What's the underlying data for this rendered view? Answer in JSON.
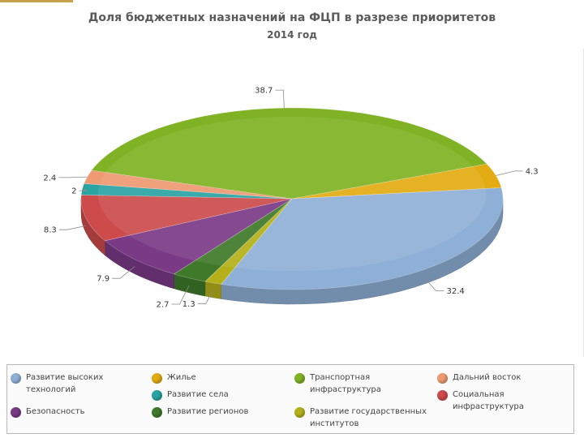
{
  "title": "Доля бюджетных назначений на ФЦП в разрезе приоритетов",
  "subtitle": "2014 год",
  "chart_data": {
    "type": "pie",
    "title": "Доля бюджетных назначений на ФЦП в разрезе приоритетов",
    "subtitle": "2014 год",
    "legend_position": "bottom",
    "slices": [
      {
        "name": "Развитие высоких технологий",
        "value": 32.4,
        "color": "#8fb0d6"
      },
      {
        "name": "Развитие государственных институтов",
        "value": 1.3,
        "color": "#b5b01a"
      },
      {
        "name": "Развитие регионов",
        "value": 2.7,
        "color": "#3f7a2a"
      },
      {
        "name": "Безопасность",
        "value": 7.9,
        "color": "#7a3a86"
      },
      {
        "name": "Социальная инфраструктура",
        "value": 8.3,
        "color": "#cd4b4b"
      },
      {
        "name": "Развитие села",
        "value": 2,
        "color": "#2aa3a3"
      },
      {
        "name": "Дальний восток",
        "value": 2.4,
        "color": "#ee9a72"
      },
      {
        "name": "Транспортная инфраструктура",
        "value": 38.7,
        "color": "#7fb224"
      },
      {
        "name": "Жилье",
        "value": 4.3,
        "color": "#e2ac12"
      }
    ],
    "data_labels": [
      "32.4",
      "1.3",
      "2.7",
      "7.9",
      "8.3",
      "2",
      "2.4",
      "38.7",
      "4.3"
    ]
  },
  "legend": [
    {
      "label": "Развитие высоких технологий",
      "color": "#8fb0d6"
    },
    {
      "label": "Жилье",
      "color": "#e2ac12"
    },
    {
      "label": "Транспортная инфраструктура",
      "color": "#7fb224"
    },
    {
      "label": "Дальний восток",
      "color": "#ee9a72"
    },
    {
      "label": "Развитие села",
      "color": "#2aa3a3"
    },
    {
      "label": "Социальная инфраструктура",
      "color": "#cd4b4b"
    },
    {
      "label": "Безопасность",
      "color": "#7a3a86"
    },
    {
      "label": "Развитие регионов",
      "color": "#3f7a2a"
    },
    {
      "label": "Развитие государственных институтов",
      "color": "#b5b01a"
    }
  ]
}
